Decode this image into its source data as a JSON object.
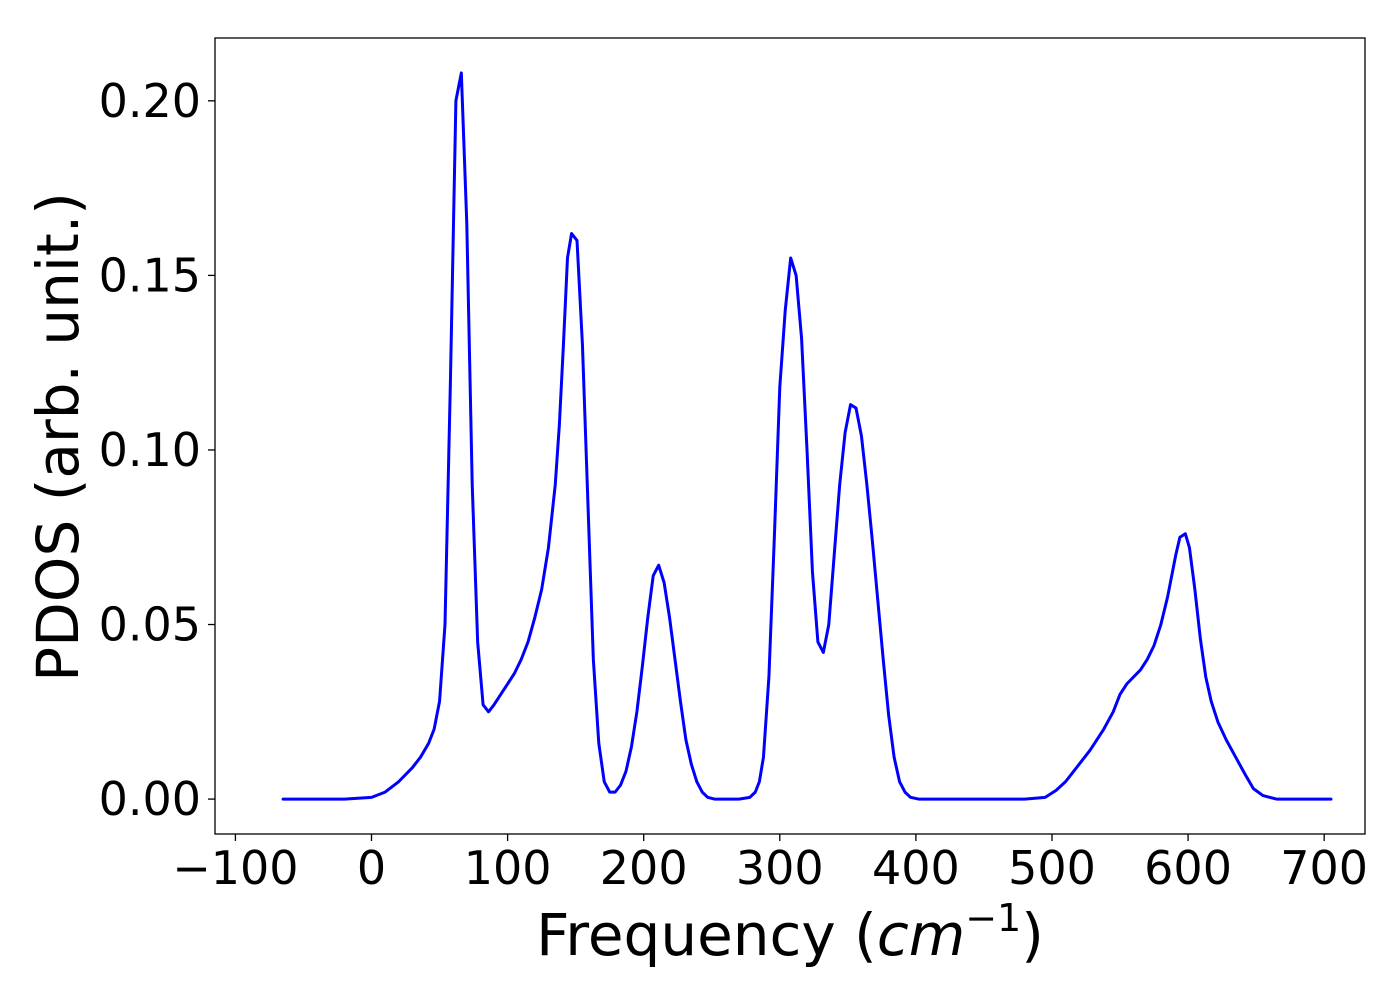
{
  "chart_data": {
    "type": "line",
    "xlabel": "Frequency",
    "xlabel_unit": "cm",
    "xlabel_unit_exponent": "−1",
    "ylabel": "PDOS (arb. unit.)",
    "xlim": [
      -115,
      730
    ],
    "ylim": [
      -0.01,
      0.218
    ],
    "xticks": [
      -100,
      0,
      100,
      200,
      300,
      400,
      500,
      600,
      700
    ],
    "xtick_labels": [
      "−100",
      "0",
      "100",
      "200",
      "300",
      "400",
      "500",
      "600",
      "700"
    ],
    "yticks": [
      0.0,
      0.05,
      0.1,
      0.15,
      0.2
    ],
    "ytick_labels": [
      "0.00",
      "0.05",
      "0.10",
      "0.15",
      "0.20"
    ],
    "grid": false,
    "series": [
      {
        "color": "#0000ff",
        "x": [
          -65,
          -20,
          0,
          10,
          20,
          30,
          36,
          42,
          46,
          50,
          54,
          58,
          62,
          66,
          70,
          74,
          78,
          82,
          86,
          90,
          95,
          100,
          105,
          110,
          115,
          120,
          125,
          130,
          135,
          138,
          141,
          144,
          147,
          151,
          155,
          159,
          163,
          167,
          171,
          175,
          179,
          183,
          187,
          191,
          195,
          199,
          203,
          207,
          211,
          215,
          219,
          223,
          227,
          231,
          235,
          239,
          243,
          247,
          252,
          260,
          270,
          278,
          282,
          285,
          288,
          292,
          296,
          300,
          304,
          308,
          312,
          316,
          320,
          324,
          328,
          332,
          336,
          340,
          344,
          348,
          352,
          356,
          360,
          364,
          368,
          372,
          376,
          380,
          384,
          388,
          392,
          396,
          402,
          420,
          450,
          480,
          495,
          503,
          510,
          518,
          528,
          538,
          545,
          550,
          555,
          560,
          565,
          570,
          575,
          580,
          585,
          588,
          591,
          594,
          598,
          601,
          605,
          609,
          613,
          617,
          622,
          628,
          635,
          642,
          648,
          655,
          665,
          705
        ],
        "y": [
          0.0,
          0.0,
          0.0005,
          0.002,
          0.005,
          0.009,
          0.012,
          0.016,
          0.02,
          0.028,
          0.05,
          0.12,
          0.2,
          0.208,
          0.165,
          0.09,
          0.045,
          0.027,
          0.025,
          0.027,
          0.03,
          0.033,
          0.036,
          0.04,
          0.045,
          0.052,
          0.06,
          0.072,
          0.09,
          0.107,
          0.13,
          0.155,
          0.162,
          0.16,
          0.13,
          0.085,
          0.04,
          0.016,
          0.005,
          0.002,
          0.002,
          0.004,
          0.008,
          0.015,
          0.025,
          0.038,
          0.052,
          0.064,
          0.067,
          0.062,
          0.052,
          0.04,
          0.028,
          0.017,
          0.01,
          0.005,
          0.002,
          0.0005,
          0.0,
          0.0,
          0.0,
          0.0005,
          0.002,
          0.005,
          0.012,
          0.035,
          0.075,
          0.118,
          0.14,
          0.155,
          0.15,
          0.132,
          0.1,
          0.065,
          0.045,
          0.042,
          0.05,
          0.07,
          0.09,
          0.105,
          0.113,
          0.112,
          0.104,
          0.09,
          0.074,
          0.057,
          0.04,
          0.024,
          0.012,
          0.005,
          0.002,
          0.0005,
          0.0,
          0.0,
          0.0,
          0.0,
          0.0005,
          0.0025,
          0.005,
          0.009,
          0.014,
          0.02,
          0.025,
          0.03,
          0.033,
          0.035,
          0.037,
          0.04,
          0.044,
          0.05,
          0.058,
          0.064,
          0.07,
          0.075,
          0.076,
          0.072,
          0.06,
          0.046,
          0.035,
          0.028,
          0.022,
          0.017,
          0.012,
          0.007,
          0.003,
          0.001,
          0.0,
          0.0
        ]
      }
    ]
  }
}
